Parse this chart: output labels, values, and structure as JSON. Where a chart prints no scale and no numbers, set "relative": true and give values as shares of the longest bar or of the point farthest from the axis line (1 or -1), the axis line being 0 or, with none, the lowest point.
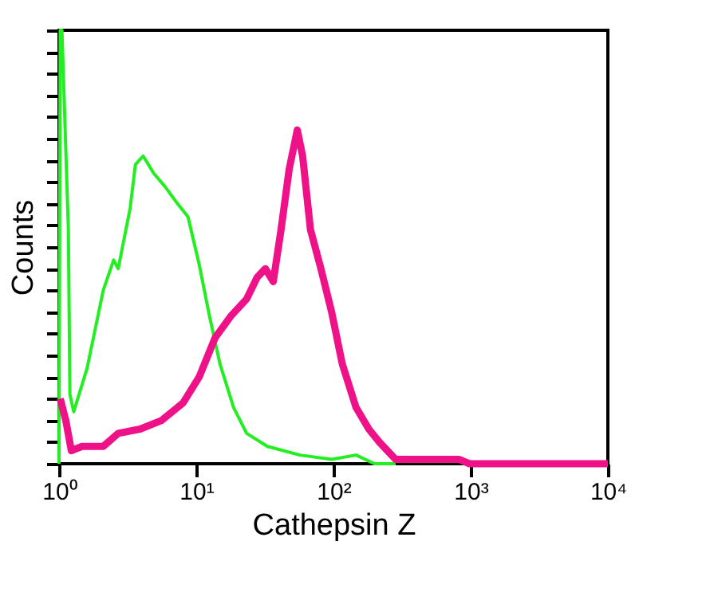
{
  "chart_data": {
    "type": "line",
    "xlabel": "Cathepsin Z",
    "ylabel": "Counts",
    "relative": true,
    "log": "x",
    "tick_labels": "x",
    "grid": false,
    "xlim": [
      1,
      10000
    ],
    "xticks": [
      {
        "value": 1,
        "label": "10⁰"
      },
      {
        "value": 10,
        "label": "10¹"
      },
      {
        "value": 100,
        "label": "10²"
      },
      {
        "value": 1000,
        "label": "10³"
      },
      {
        "value": 10000,
        "label": "10⁴"
      }
    ],
    "series": [
      {
        "color": "#22ee22",
        "x": [
          1.0,
          1.02,
          1.05,
          1.17,
          1.2,
          1.28,
          1.6,
          2.1,
          2.5,
          2.7,
          3.3,
          3.6,
          4.1,
          4.9,
          5.9,
          7.3,
          8.7,
          10.5,
          12.5,
          14.9,
          18.7,
          23.3,
          33,
          57,
          97,
          146,
          199,
          284
        ],
        "values": [
          0,
          1,
          1,
          0.54,
          0.16,
          0.12,
          0.22,
          0.4,
          0.47,
          0.45,
          0.59,
          0.69,
          0.71,
          0.67,
          0.64,
          0.6,
          0.57,
          0.46,
          0.34,
          0.23,
          0.13,
          0.07,
          0.04,
          0.02,
          0.01,
          0.02,
          0.0,
          0
        ]
      },
      {
        "color": "#ee1188",
        "x": [
          1.02,
          1.12,
          1.23,
          1.47,
          2.1,
          2.7,
          3.9,
          5.6,
          8.0,
          10.5,
          13.7,
          17.8,
          23.3,
          27.8,
          31.9,
          36.4,
          41.5,
          47.6,
          54.5,
          59.6,
          68,
          81,
          97,
          116,
          146,
          181,
          216,
          284,
          486,
          826,
          980,
          10000
        ],
        "values": [
          0.15,
          0.1,
          0.03,
          0.04,
          0.04,
          0.07,
          0.08,
          0.1,
          0.14,
          0.2,
          0.29,
          0.34,
          0.38,
          0.43,
          0.45,
          0.42,
          0.54,
          0.68,
          0.77,
          0.71,
          0.54,
          0.45,
          0.35,
          0.23,
          0.13,
          0.08,
          0.05,
          0.01,
          0.01,
          0.01,
          0,
          0
        ]
      }
    ]
  }
}
